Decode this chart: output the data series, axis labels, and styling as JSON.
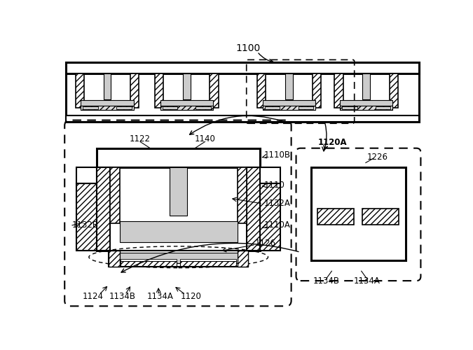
{
  "bg_color": "#ffffff",
  "gray_fill": "#cccccc",
  "light_gray": "#dddddd",
  "label_1100": "1100",
  "label_1122": "1122",
  "label_1140": "1140",
  "label_1110B": "1110B",
  "label_1110": "1110",
  "label_1132A": "1132A",
  "label_1132B": "1132B",
  "label_1110A": "1110A",
  "label_1126": "1126",
  "label_1124": "1124",
  "label_1134B": "1134B",
  "label_1134A": "1134A",
  "label_1120": "1120",
  "label_1120A": "1120A",
  "label_1226": "1226",
  "label_1134B_r": "1134B",
  "label_1134A_r": "1134A"
}
